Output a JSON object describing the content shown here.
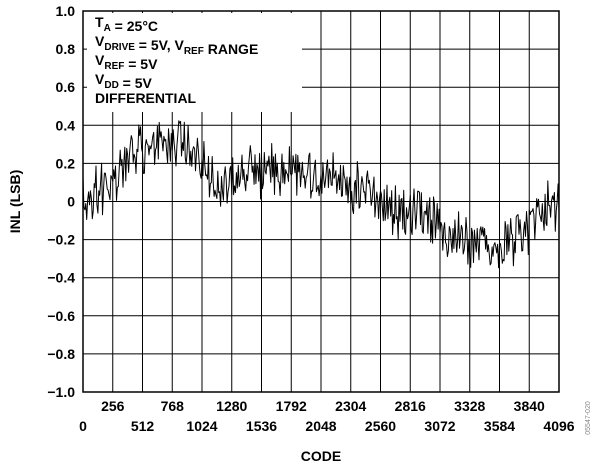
{
  "chart_data": {
    "type": "line",
    "title": "",
    "xlabel": "CODE",
    "ylabel": "INL (LSB)",
    "xlim": [
      0,
      4096
    ],
    "ylim": [
      -1.0,
      1.0
    ],
    "grid": true,
    "legend": "none",
    "line_color": "#000000",
    "y_ticks": [
      "1.0",
      "0.8",
      "0.6",
      "0.4",
      "0.2",
      "0",
      "−0.2",
      "−0.4",
      "−0.6",
      "−0.8",
      "−1.0"
    ],
    "y_tick_values": [
      1.0,
      0.8,
      0.6,
      0.4,
      0.2,
      0,
      -0.2,
      -0.4,
      -0.6,
      -0.8,
      -1.0
    ],
    "x_ticks_upper": [
      "256",
      "768",
      "1280",
      "1792",
      "2304",
      "2816",
      "3328",
      "3840"
    ],
    "x_ticks_upper_values": [
      256,
      768,
      1280,
      1792,
      2304,
      2816,
      3328,
      3840
    ],
    "x_ticks_lower": [
      "0",
      "512",
      "1024",
      "1536",
      "2048",
      "2560",
      "3072",
      "3584",
      "4096"
    ],
    "x_ticks_lower_values": [
      0,
      512,
      1024,
      1536,
      2048,
      2560,
      3072,
      3584,
      4096
    ],
    "annotation": [
      {
        "base": "T",
        "sub": "A",
        "rest": " = 25°C"
      },
      {
        "base": "V",
        "sub": "DRIVE",
        "rest": " = 5V, ",
        "base2": "V",
        "sub2": "REF",
        "rest2": " RANGE"
      },
      {
        "base": "V",
        "sub": "REF",
        "rest": " = 5V"
      },
      {
        "base": "V",
        "sub": "DD",
        "rest": " = 5V"
      },
      {
        "base": "DIFFERENTIAL",
        "sub": "",
        "rest": ""
      }
    ],
    "side_label": "05547-020",
    "series": [
      {
        "x": [
          0,
          128,
          256,
          384,
          512,
          640,
          768,
          896,
          1024,
          1152,
          1280,
          1408,
          1536,
          1664,
          1792,
          1920,
          2048,
          2176,
          2304,
          2432,
          2560,
          2688,
          2816,
          2944,
          3072,
          3200,
          3328,
          3456,
          3584,
          3712,
          3840,
          3968,
          4096
        ],
        "y": [
          0.0,
          0.06,
          0.12,
          0.2,
          0.28,
          0.33,
          0.31,
          0.27,
          0.2,
          0.12,
          0.11,
          0.13,
          0.16,
          0.17,
          0.18,
          0.16,
          0.14,
          0.1,
          0.07,
          0.03,
          -0.04,
          -0.06,
          -0.04,
          -0.05,
          -0.12,
          -0.19,
          -0.24,
          -0.22,
          -0.24,
          -0.19,
          -0.13,
          -0.04,
          0.01
        ]
      }
    ]
  }
}
